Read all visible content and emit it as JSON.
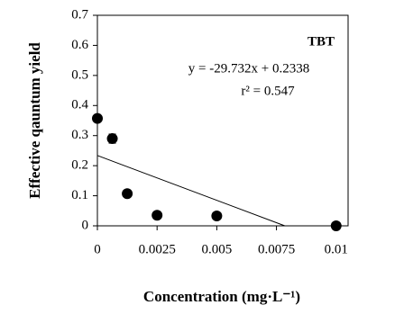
{
  "chart_data": {
    "type": "scatter",
    "x_label": "Concentration (mg·L⁻¹)",
    "y_label": "Effective qauntum yield",
    "annotations": [
      "TBT",
      "y = -29.732x + 0.2338",
      "r² = 0.547"
    ],
    "x": [
      0,
      0.000625,
      0.00125,
      0.0025,
      0.005,
      0.01
    ],
    "values": [
      0.357,
      0.29,
      0.107,
      0.035,
      0.033,
      0.0
    ],
    "errors": [
      null,
      0.015,
      null,
      null,
      null,
      null
    ],
    "color": "#000000",
    "trendline": {
      "x": [
        0,
        0.00785
      ],
      "values": [
        0.2338,
        0
      ]
    },
    "xlim": [
      0,
      0.0105
    ],
    "ylim": [
      0,
      0.7
    ],
    "xticks": [
      0,
      0.0025,
      0.005,
      0.0075,
      0.01
    ],
    "yticks": [
      0,
      0.1,
      0.2,
      0.3,
      0.4,
      0.5,
      0.6,
      0.7
    ]
  }
}
